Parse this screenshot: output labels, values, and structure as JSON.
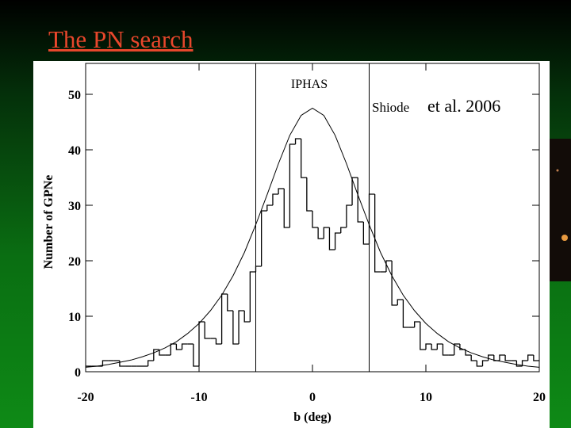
{
  "slide_title": "The PN search",
  "chart_data": {
    "type": "histogram",
    "x_label": "b (deg)",
    "y_label": "Number of GPNe",
    "annotations": [
      "IPHAS",
      "Shiode",
      "et al. 2006"
    ],
    "bins": [
      -20,
      -19.5,
      -19,
      -18.5,
      -18,
      -17.5,
      -17,
      -16.5,
      -16,
      -15.5,
      -15,
      -14.5,
      -14,
      -13.5,
      -13,
      -12.5,
      -12,
      -11.5,
      -11,
      -10.5,
      -10,
      -9.5,
      -9,
      -8.5,
      -8,
      -7.5,
      -7,
      -6.5,
      -6,
      -5.5,
      -5,
      -4.5,
      -4,
      -3.5,
      -3,
      -2.5,
      -2,
      -1.5,
      -1,
      -0.5,
      0,
      0.5,
      1,
      1.5,
      2,
      2.5,
      3,
      3.5,
      4,
      4.5,
      5,
      5.5,
      6,
      6.5,
      7,
      7.5,
      8,
      8.5,
      9,
      9.5,
      10,
      10.5,
      11,
      11.5,
      12,
      12.5,
      13,
      13.5,
      14,
      14.5,
      15,
      15.5,
      16,
      16.5,
      17,
      17.5,
      18,
      18.5,
      19,
      19.5,
      20
    ],
    "values": [
      1,
      1,
      1,
      2,
      2,
      2,
      1,
      1,
      1,
      1,
      1,
      2,
      4,
      3,
      3,
      5,
      4,
      5,
      5,
      1,
      9,
      6,
      6,
      5,
      14,
      11,
      5,
      11,
      9,
      18,
      19,
      29,
      30,
      32,
      33,
      26,
      41,
      42,
      35,
      29,
      26,
      24,
      26,
      22,
      25,
      26,
      30,
      35,
      27,
      23,
      32,
      18,
      18,
      20,
      12,
      13,
      8,
      8,
      9,
      4,
      5,
      4,
      5,
      3,
      3,
      5,
      4,
      3,
      2,
      1,
      2,
      3,
      2,
      3,
      2,
      2,
      1,
      2,
      3,
      2
    ],
    "color": "#000000",
    "curve": {
      "x": [
        -20,
        -19,
        -18,
        -17,
        -16,
        -15,
        -14,
        -13,
        -12,
        -11,
        -10,
        -9,
        -8,
        -7,
        -6,
        -5,
        -4,
        -3,
        -2,
        -1,
        0,
        1,
        2,
        3,
        4,
        5,
        6,
        7,
        8,
        9,
        10,
        11,
        12,
        13,
        14,
        15,
        16,
        17,
        18,
        19,
        20
      ],
      "values": [
        0.8,
        1.0,
        1.3,
        1.7,
        2.1,
        2.7,
        3.4,
        4.3,
        5.4,
        6.9,
        8.7,
        11.0,
        13.8,
        17.3,
        21.5,
        26.5,
        31.9,
        37.5,
        42.6,
        46.2,
        47.5,
        46.2,
        42.6,
        37.5,
        31.9,
        26.5,
        21.5,
        17.3,
        13.8,
        11.0,
        8.7,
        6.9,
        5.4,
        4.3,
        3.4,
        2.7,
        2.1,
        1.7,
        1.3,
        1.0,
        0.8
      ]
    },
    "vlines": [
      -5,
      5
    ],
    "xlim": [
      -20,
      20
    ],
    "ylim": [
      0,
      56
    ],
    "xticks": [
      -20,
      -10,
      0,
      10,
      20
    ],
    "yticks": [
      0,
      10,
      20,
      30,
      40,
      50
    ]
  }
}
